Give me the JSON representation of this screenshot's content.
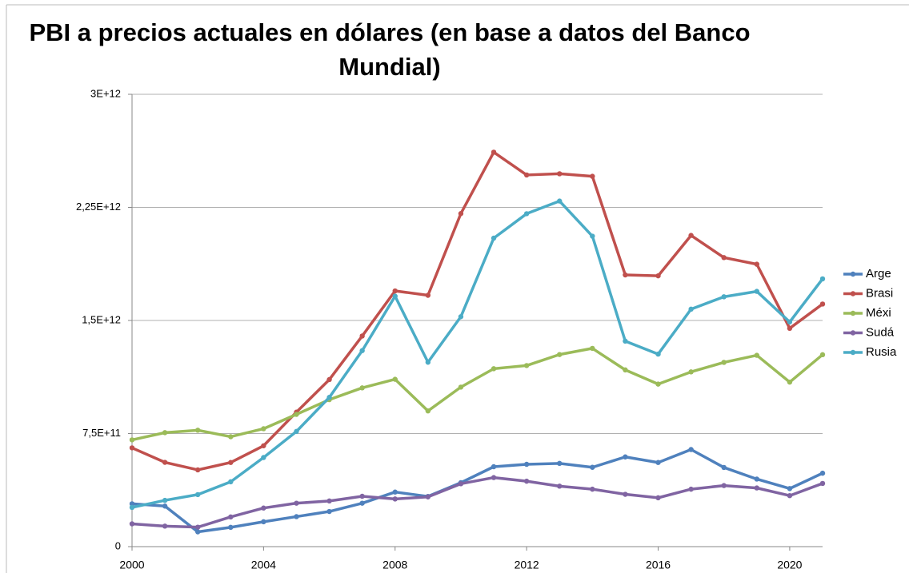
{
  "chart_data": {
    "type": "line",
    "title": [
      "PBI a precios actuales en dólares (en base a datos del Banco",
      "Mundial)"
    ],
    "x": [
      2000,
      2001,
      2002,
      2003,
      2004,
      2005,
      2006,
      2007,
      2008,
      2009,
      2010,
      2011,
      2012,
      2013,
      2014,
      2015,
      2016,
      2017,
      2018,
      2019,
      2020,
      2021
    ],
    "xlim": [
      2000,
      2021
    ],
    "xticks": [
      2000,
      2004,
      2008,
      2012,
      2016,
      2020
    ],
    "ylim": [
      0,
      3000000000000.0
    ],
    "yticks": [
      0,
      {
        "value": 750000000000.0,
        "label": "7,5E+11"
      },
      {
        "value": 1500000000000.0,
        "label": "1,5E+12"
      },
      {
        "value": 2250000000000.0,
        "label": "2,25E+12"
      },
      {
        "value": 3000000000000.0,
        "label": "3E+12"
      }
    ],
    "grid": true,
    "legend": "right",
    "series": [
      {
        "name": "Arge",
        "color": "#4f81bd",
        "values": [
          284000000000.0,
          269000000000.0,
          98000000000.0,
          128000000000.0,
          165000000000.0,
          199000000000.0,
          233000000000.0,
          288000000000.0,
          362000000000.0,
          333000000000.0,
          424000000000.0,
          530000000000.0,
          546000000000.0,
          552000000000.0,
          526000000000.0,
          595000000000.0,
          558000000000.0,
          644000000000.0,
          525000000000.0,
          448000000000.0,
          385000000000.0,
          487000000000.0
        ]
      },
      {
        "name": "Brasi",
        "color": "#c0504d",
        "values": [
          655000000000.0,
          559000000000.0,
          509000000000.0,
          558000000000.0,
          669000000000.0,
          892000000000.0,
          1108000000000.0,
          1397000000000.0,
          1696000000000.0,
          1667000000000.0,
          2209000000000.0,
          2616000000000.0,
          2465000000000.0,
          2473000000000.0,
          2456000000000.0,
          1802000000000.0,
          1796000000000.0,
          2064000000000.0,
          1917000000000.0,
          1873000000000.0,
          1448000000000.0,
          1609000000000.0
        ]
      },
      {
        "name": "Méxi",
        "color": "#9bbb59",
        "values": [
          708000000000.0,
          756000000000.0,
          772000000000.0,
          729000000000.0,
          782000000000.0,
          877000000000.0,
          975000000000.0,
          1053000000000.0,
          1110000000000.0,
          900000000000.0,
          1058000000000.0,
          1180000000000.0,
          1201000000000.0,
          1274000000000.0,
          1315000000000.0,
          1172000000000.0,
          1078000000000.0,
          1159000000000.0,
          1222000000000.0,
          1269000000000.0,
          1091000000000.0,
          1273000000000.0
        ]
      },
      {
        "name": "Sudá",
        "color": "#8064a2",
        "values": [
          151000000000.0,
          136000000000.0,
          129000000000.0,
          197000000000.0,
          256000000000.0,
          288000000000.0,
          303000000000.0,
          334000000000.0,
          316000000000.0,
          330000000000.0,
          417000000000.0,
          458000000000.0,
          434000000000.0,
          401000000000.0,
          381000000000.0,
          347000000000.0,
          324000000000.0,
          381000000000.0,
          405000000000.0,
          389000000000.0,
          338000000000.0,
          419000000000.0
        ]
      },
      {
        "name": "Rusia",
        "color": "#4bacc6",
        "values": [
          260000000000.0,
          307000000000.0,
          345000000000.0,
          430000000000.0,
          591000000000.0,
          764000000000.0,
          990000000000.0,
          1300000000000.0,
          1661000000000.0,
          1223000000000.0,
          1525000000000.0,
          2046000000000.0,
          2208000000000.0,
          2292000000000.0,
          2059000000000.0,
          1363000000000.0,
          1277000000000.0,
          1575000000000.0,
          1657000000000.0,
          1693000000000.0,
          1490000000000.0,
          1776000000000.0
        ]
      }
    ]
  }
}
